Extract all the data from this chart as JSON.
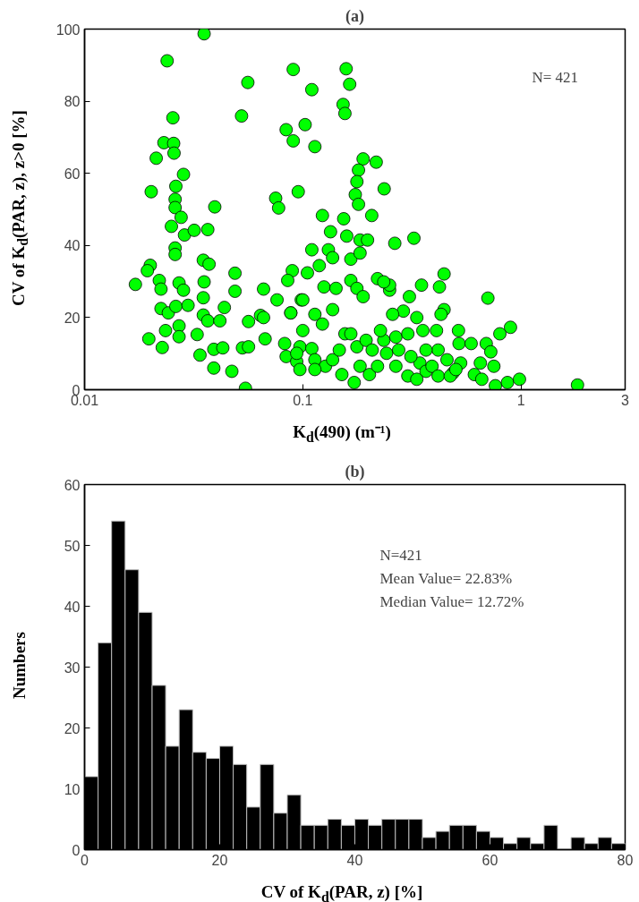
{
  "chart_data": [
    {
      "type": "scatter",
      "title": "(a)",
      "xlabel": "K$_{d}$(490) (m⁻¹)",
      "ylabel": "CV of K$_{d}$(PAR, z), z>0 [%]",
      "log": "x",
      "xlim": [
        0.01,
        3
      ],
      "xticks": [
        0.01,
        0.1,
        1,
        3
      ],
      "ylim": [
        0,
        100
      ],
      "yticks": [
        0,
        20,
        40,
        60,
        80,
        100
      ],
      "grid": false,
      "marker": "circle",
      "annotations": [
        "N= 421"
      ],
      "series": [
        {
          "color": "#00ff00",
          "x": [
            0.0353,
            0.0239,
            0.0254,
            0.0231,
            0.0256,
            0.0257,
            0.0213,
            0.0284,
            0.0262,
            0.026,
            0.026,
            0.0277,
            0.025,
            0.0287,
            0.0318,
            0.0367,
            0.0202,
            0.0395,
            0.026,
            0.026,
            0.02,
            0.0194,
            0.0171,
            0.022,
            0.0224,
            0.0271,
            0.0284,
            0.035,
            0.0372,
            0.0353,
            0.035,
            0.0489,
            0.0489,
            0.0661,
            0.0762,
            0.0881,
            0.064,
            0.0984,
            0.0224,
            0.0242,
            0.0262,
            0.0298,
            0.035,
            0.0367,
            0.0417,
            0.0437,
            0.0235,
            0.0271,
            0.0271,
            0.0328,
            0.0197,
            0.0227,
            0.0338,
            0.0391,
            0.043,
            0.0529,
            0.0564,
            0.0564,
            0.0661,
            0.0672,
            0.0391,
            0.0473,
            0.0546,
            0.0839,
            0.0938,
            0.097,
            0.0826,
            0.056,
            0.0524,
            0.0904,
            0.11,
            0.1025,
            0.158,
            0.164,
            0.153,
            0.156,
            0.0839,
            0.0904,
            0.1136,
            0.0751,
            0.0775,
            0.0953,
            0.123,
            0.154,
            0.134,
            0.159,
            0.11,
            0.131,
            0.137,
            0.119,
            0.166,
            0.183,
            0.183,
            0.198,
            0.189,
            0.18,
            0.177,
            0.174,
            0.18,
            0.0895,
            0.0853,
            0.105,
            0.125,
            0.142,
            0.166,
            0.177,
            0.189,
            0.1,
            0.1136,
            0.123,
            0.137,
            0.0881,
            0.1,
            0.097,
            0.11,
            0.0938,
            0.1136,
            0.127,
            0.1136,
            0.137,
            0.147,
            0.156,
            0.151,
            0.183,
            0.202,
            0.166,
            0.177,
            0.195,
            0.172,
            0.208,
            0.217,
            0.236,
            0.207,
            0.264,
            0.323,
            0.444,
            0.423,
            0.35,
            0.444,
            0.43,
            0.705,
            0.895,
            0.8,
            0.308,
            0.289,
            0.25,
            0.25,
            0.22,
            0.235,
            0.258,
            0.333,
            0.355,
            0.41,
            0.517,
            0.52,
            0.591,
            0.693,
            0.727,
            0.651,
            0.751,
            0.529,
            0.489,
            0.611,
            0.661,
            0.763,
            0.867,
            0.984,
            1.815,
            0.344,
            0.313,
            0.367,
            0.391,
            0.417,
            0.458,
            0.303,
            0.267,
            0.242,
            0.22,
            0.275,
            0.333,
            0.417,
            0.235,
            0.267,
            0.227,
            0.367,
            0.303,
            0.474,
            0.503
          ],
          "values": [
            98.7,
            91.2,
            75.4,
            68.5,
            68.3,
            65.6,
            64.2,
            59.7,
            56.4,
            52.8,
            50.5,
            47.8,
            45.3,
            42.9,
            44.2,
            44.4,
            54.9,
            50.7,
            39.3,
            37.5,
            34.5,
            33.0,
            29.2,
            30.3,
            27.9,
            29.6,
            27.6,
            35.9,
            34.8,
            29.9,
            25.5,
            32.3,
            27.3,
            27.9,
            24.9,
            21.3,
            20.6,
            24.9,
            22.5,
            21.3,
            23.1,
            23.4,
            20.7,
            19.1,
            19.1,
            22.8,
            16.4,
            17.7,
            14.7,
            15.3,
            14.1,
            11.7,
            9.6,
            11.2,
            11.6,
            11.6,
            11.9,
            18.9,
            20.0,
            14.1,
            6.0,
            5.1,
            0.4,
            9.2,
            7.8,
            5.6,
            12.8,
            85.2,
            75.9,
            88.8,
            83.2,
            73.5,
            89.0,
            84.7,
            79.1,
            76.6,
            72.1,
            69.0,
            67.4,
            53.1,
            50.4,
            54.9,
            48.3,
            47.4,
            43.8,
            42.6,
            38.8,
            38.8,
            36.6,
            34.4,
            36.2,
            37.9,
            41.5,
            41.5,
            64.0,
            60.9,
            57.7,
            54.1,
            51.4,
            33.0,
            30.3,
            32.4,
            28.5,
            28.1,
            30.3,
            28.1,
            25.8,
            24.9,
            20.9,
            18.2,
            22.2,
            21.3,
            16.4,
            11.9,
            11.4,
            10.1,
            8.3,
            6.5,
            5.6,
            8.3,
            11.0,
            15.5,
            4.2,
            6.5,
            4.2,
            15.5,
            11.9,
            13.7,
            2.0,
            11.0,
            63.1,
            55.7,
            48.3,
            40.6,
            42.0,
            32.1,
            28.5,
            29.0,
            22.2,
            20.9,
            25.4,
            17.3,
            15.5,
            25.8,
            21.8,
            27.6,
            29.0,
            30.8,
            29.9,
            20.9,
            20.0,
            16.4,
            16.4,
            16.4,
            12.8,
            12.8,
            12.8,
            10.5,
            7.4,
            6.5,
            7.4,
            4.7,
            4.2,
            2.9,
            1.1,
            2.0,
            2.9,
            1.3,
            7.4,
            9.2,
            5.1,
            6.5,
            11.0,
            8.3,
            3.8,
            6.5,
            10.1,
            6.5,
            11.0,
            2.9,
            3.8,
            13.7,
            14.6,
            16.4,
            11.0,
            15.5,
            3.8,
            5.6
          ]
        }
      ]
    },
    {
      "type": "histogram",
      "title": "(b)",
      "xlabel": "CV of K$_{d}$(PAR, z) [%]",
      "ylabel": "Numbers",
      "xlim": [
        0,
        80
      ],
      "xticks": [
        0,
        20,
        40,
        60,
        80
      ],
      "ylim": [
        0,
        60
      ],
      "yticks": [
        0,
        10,
        20,
        30,
        40,
        50,
        60
      ],
      "grid": false,
      "color": "#000000",
      "annotations": [
        "N=421",
        "Mean Value= 22.83%",
        "Median Value= 12.72%"
      ],
      "bins": [
        0,
        2,
        4,
        6,
        8,
        10,
        12,
        14,
        16,
        18,
        20,
        22,
        24,
        26,
        28,
        30,
        32,
        34,
        36,
        38,
        40,
        42,
        44,
        46,
        48,
        50,
        52,
        54,
        56,
        58,
        60,
        62,
        64,
        66,
        68,
        70,
        72,
        74,
        76,
        78,
        80
      ],
      "values": [
        12,
        34,
        54,
        46,
        39,
        27,
        17,
        23,
        16,
        15,
        17,
        14,
        7,
        14,
        6,
        9,
        4,
        4,
        5,
        4,
        5,
        4,
        5,
        5,
        5,
        2,
        3,
        4,
        4,
        3,
        2,
        1,
        2,
        1,
        4,
        0,
        2,
        1,
        2,
        1
      ]
    }
  ]
}
